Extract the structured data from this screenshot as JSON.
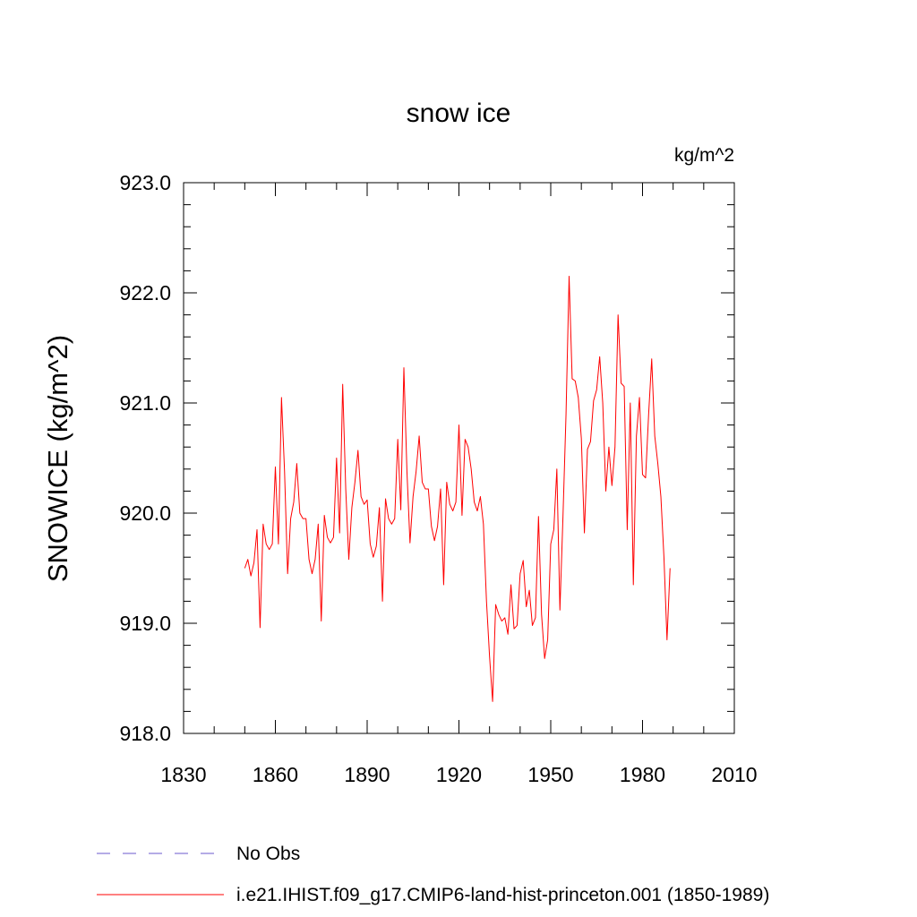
{
  "chart_data": {
    "type": "line",
    "title": "snow ice",
    "units": "kg/m^2",
    "ylabel": "SNOWICE  (kg/m^2)",
    "xlabel": "",
    "xlim": [
      1830,
      2010
    ],
    "ylim": [
      918.0,
      923.0
    ],
    "x_ticks": [
      1830,
      1860,
      1890,
      1920,
      1950,
      1980,
      2010
    ],
    "x_tick_labels": [
      "1830",
      "1860",
      "1890",
      "1920",
      "1950",
      "1980",
      "2010"
    ],
    "y_ticks": [
      918.0,
      919.0,
      920.0,
      921.0,
      922.0,
      923.0
    ],
    "y_tick_labels": [
      "918.0",
      "919.0",
      "920.0",
      "921.0",
      "922.0",
      "923.0"
    ],
    "grid": false,
    "legend_position": "bottom-left",
    "series": [
      {
        "name": "No Obs",
        "color": "#6a5acd",
        "style": "dashed",
        "x": [],
        "y": []
      },
      {
        "name": "i.e21.IHIST.f09_g17.CMIP6-land-hist-princeton.001 (1850-1989)",
        "color": "#ff0000",
        "style": "solid",
        "x": [
          1850,
          1851,
          1852,
          1853,
          1854,
          1855,
          1856,
          1857,
          1858,
          1859,
          1860,
          1861,
          1862,
          1863,
          1864,
          1865,
          1866,
          1867,
          1868,
          1869,
          1870,
          1871,
          1872,
          1873,
          1874,
          1875,
          1876,
          1877,
          1878,
          1879,
          1880,
          1881,
          1882,
          1883,
          1884,
          1885,
          1886,
          1887,
          1888,
          1889,
          1890,
          1891,
          1892,
          1893,
          1894,
          1895,
          1896,
          1897,
          1898,
          1899,
          1900,
          1901,
          1902,
          1903,
          1904,
          1905,
          1906,
          1907,
          1908,
          1909,
          1910,
          1911,
          1912,
          1913,
          1914,
          1915,
          1916,
          1917,
          1918,
          1919,
          1920,
          1921,
          1922,
          1923,
          1924,
          1925,
          1926,
          1927,
          1928,
          1929,
          1930,
          1931,
          1932,
          1933,
          1934,
          1935,
          1936,
          1937,
          1938,
          1939,
          1940,
          1941,
          1942,
          1943,
          1944,
          1945,
          1946,
          1947,
          1948,
          1949,
          1950,
          1951,
          1952,
          1953,
          1954,
          1955,
          1956,
          1957,
          1958,
          1959,
          1960,
          1961,
          1962,
          1963,
          1964,
          1965,
          1966,
          1967,
          1968,
          1969,
          1970,
          1971,
          1972,
          1973,
          1974,
          1975,
          1976,
          1977,
          1978,
          1979,
          1980,
          1981,
          1982,
          1983,
          1984,
          1985,
          1986,
          1987,
          1988,
          1989
        ],
        "y": [
          919.5,
          919.58,
          919.43,
          919.55,
          919.85,
          918.96,
          919.9,
          919.72,
          919.67,
          919.72,
          920.42,
          919.72,
          921.05,
          920.38,
          919.45,
          919.95,
          920.1,
          920.45,
          920.0,
          919.95,
          919.95,
          919.58,
          919.45,
          919.58,
          919.9,
          919.02,
          919.98,
          919.78,
          919.73,
          919.78,
          920.5,
          919.82,
          921.17,
          920.22,
          919.58,
          920.05,
          920.28,
          920.57,
          920.15,
          920.08,
          920.12,
          919.72,
          919.6,
          919.7,
          920.05,
          919.2,
          920.13,
          919.95,
          919.9,
          919.95,
          920.67,
          920.03,
          921.32,
          920.38,
          919.73,
          920.15,
          920.38,
          920.7,
          920.28,
          920.22,
          920.22,
          919.88,
          919.75,
          919.88,
          920.22,
          919.35,
          920.28,
          920.08,
          920.02,
          920.1,
          920.8,
          919.98,
          920.67,
          920.6,
          920.4,
          920.1,
          920.02,
          920.15,
          919.9,
          919.2,
          918.7,
          918.29,
          919.17,
          919.08,
          919.02,
          919.05,
          918.9,
          919.35,
          918.95,
          918.98,
          919.45,
          919.57,
          919.15,
          919.3,
          918.98,
          919.05,
          919.97,
          919.08,
          918.68,
          918.85,
          919.72,
          919.85,
          920.4,
          919.12,
          919.97,
          920.9,
          922.15,
          921.22,
          921.2,
          921.05,
          920.68,
          919.82,
          920.58,
          920.65,
          921.02,
          921.12,
          921.42,
          921.0,
          920.2,
          920.6,
          920.25,
          920.6,
          921.8,
          921.18,
          921.15,
          919.85,
          921.0,
          919.35,
          920.7,
          921.05,
          920.35,
          920.32,
          920.9,
          921.4,
          920.7,
          920.45,
          920.15,
          919.6,
          918.85,
          919.5
        ]
      }
    ]
  }
}
